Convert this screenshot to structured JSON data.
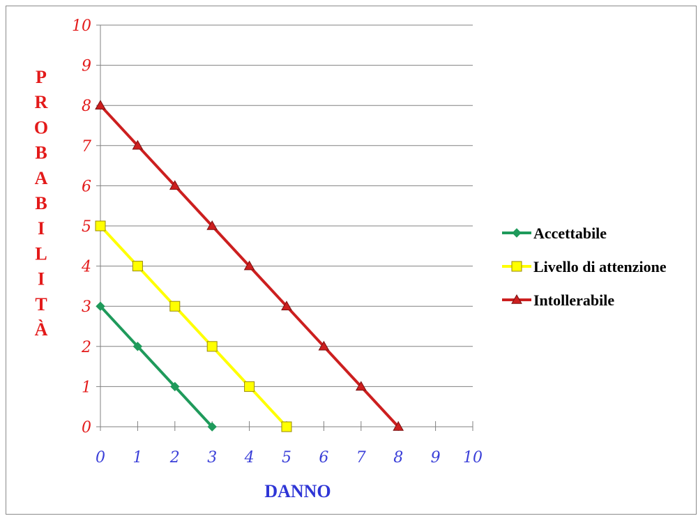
{
  "chart_data": {
    "type": "line",
    "xlabel": "DANNO",
    "ylabel": "PROBABILITÀ",
    "xlim": [
      0,
      10
    ],
    "ylim": [
      0,
      10
    ],
    "x_ticks": [
      0,
      1,
      2,
      3,
      4,
      5,
      6,
      7,
      8,
      9,
      10
    ],
    "y_ticks": [
      0,
      1,
      2,
      3,
      4,
      5,
      6,
      7,
      8,
      9,
      10
    ],
    "grid": "horizontal",
    "legend_position": "right",
    "colors": {
      "ytick": "#e31a1a",
      "xtick": "#3a3fd8",
      "ylabel": "#e31a1a",
      "xlabel": "#2e35d6"
    },
    "series": [
      {
        "name": "Accettabile",
        "color": "#1f9a5b",
        "marker": "diamond",
        "x": [
          0,
          1,
          2,
          3
        ],
        "y": [
          3,
          2,
          1,
          0
        ]
      },
      {
        "name": "Livello di attenzione",
        "color": "#ffff00",
        "marker": "square",
        "x": [
          0,
          1,
          2,
          3,
          4,
          5
        ],
        "y": [
          5,
          4,
          3,
          2,
          1,
          0
        ]
      },
      {
        "name": "Intollerabile",
        "color": "#cc1f1f",
        "marker": "triangle",
        "x": [
          0,
          1,
          2,
          3,
          4,
          5,
          6,
          7,
          8
        ],
        "y": [
          8,
          7,
          6,
          5,
          4,
          3,
          2,
          1,
          0
        ]
      }
    ]
  }
}
